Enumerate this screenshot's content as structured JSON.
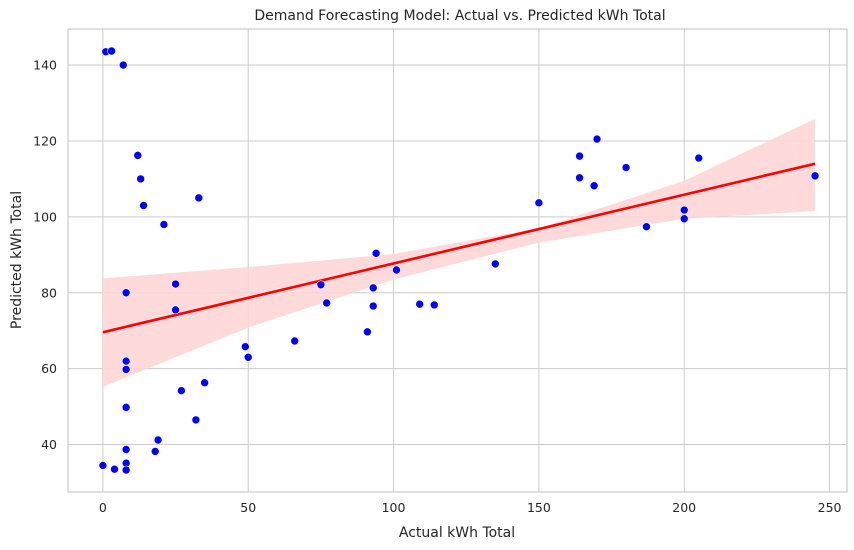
{
  "chart_data": {
    "type": "scatter",
    "title": "Demand Forecasting Model: Actual vs. Predicted kWh Total",
    "xlabel": "Actual kWh Total",
    "ylabel": "Predicted kWh Total",
    "xlim": [
      -12,
      256
    ],
    "ylim": [
      27.5,
      149.5
    ],
    "xticks": [
      0,
      50,
      100,
      150,
      200,
      250
    ],
    "yticks": [
      40,
      60,
      80,
      100,
      120,
      140
    ],
    "grid": true,
    "colors": {
      "points": "#0000ff",
      "regression_line": "#ff0000",
      "confidence_band": "#ffd6d6"
    },
    "points": [
      {
        "x": 1,
        "y": 143.5
      },
      {
        "x": 3,
        "y": 143.7
      },
      {
        "x": 7,
        "y": 140
      },
      {
        "x": 12,
        "y": 116.2
      },
      {
        "x": 13,
        "y": 110
      },
      {
        "x": 14,
        "y": 103
      },
      {
        "x": 21,
        "y": 98
      },
      {
        "x": 33,
        "y": 105
      },
      {
        "x": 25,
        "y": 82.3
      },
      {
        "x": 25,
        "y": 75.5
      },
      {
        "x": 8,
        "y": 80
      },
      {
        "x": 8,
        "y": 62
      },
      {
        "x": 8,
        "y": 59.8
      },
      {
        "x": 8,
        "y": 49.8
      },
      {
        "x": 8,
        "y": 38.7
      },
      {
        "x": 8,
        "y": 35.1
      },
      {
        "x": 8,
        "y": 33.3
      },
      {
        "x": 0,
        "y": 34.5
      },
      {
        "x": 4,
        "y": 33.5
      },
      {
        "x": 19,
        "y": 41.2
      },
      {
        "x": 18,
        "y": 38.2
      },
      {
        "x": 27,
        "y": 54.2
      },
      {
        "x": 32,
        "y": 46.5
      },
      {
        "x": 35,
        "y": 56.3
      },
      {
        "x": 49,
        "y": 65.8
      },
      {
        "x": 50,
        "y": 63
      },
      {
        "x": 66,
        "y": 67.3
      },
      {
        "x": 75,
        "y": 82.1
      },
      {
        "x": 77,
        "y": 77.3
      },
      {
        "x": 91,
        "y": 69.7
      },
      {
        "x": 93,
        "y": 81.3
      },
      {
        "x": 93,
        "y": 76.5
      },
      {
        "x": 94,
        "y": 90.4
      },
      {
        "x": 101,
        "y": 86
      },
      {
        "x": 109,
        "y": 77
      },
      {
        "x": 114,
        "y": 76.8
      },
      {
        "x": 135,
        "y": 87.6
      },
      {
        "x": 150,
        "y": 103.7
      },
      {
        "x": 164,
        "y": 116
      },
      {
        "x": 164,
        "y": 110.3
      },
      {
        "x": 169,
        "y": 108.2
      },
      {
        "x": 170,
        "y": 120.5
      },
      {
        "x": 180,
        "y": 113
      },
      {
        "x": 187,
        "y": 97.4
      },
      {
        "x": 200,
        "y": 101.8
      },
      {
        "x": 200,
        "y": 99.5
      },
      {
        "x": 205,
        "y": 115.5
      },
      {
        "x": 245,
        "y": 110.8
      }
    ],
    "regression_line": {
      "x": [
        0,
        245
      ],
      "y": [
        69.6,
        114
      ]
    },
    "confidence_band": {
      "x": [
        0,
        50,
        100,
        150,
        200,
        245
      ],
      "lower": [
        55.2,
        70.8,
        83.5,
        93.2,
        99.5,
        101.5
      ],
      "upper": [
        83.8,
        86.8,
        90.2,
        97.0,
        109.5,
        125.8
      ]
    }
  }
}
